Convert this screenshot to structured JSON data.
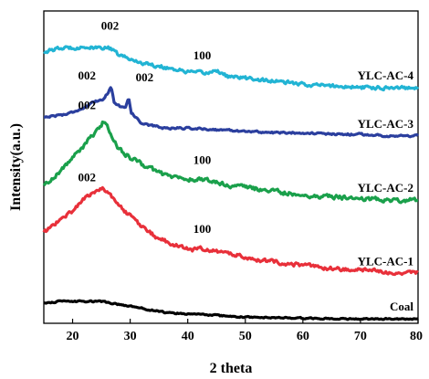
{
  "chart_data": {
    "type": "line",
    "xlabel": "2 theta",
    "ylabel": "Intensity(a.u.)",
    "xlim": [
      15,
      80
    ],
    "ylim": [
      0,
      100
    ],
    "xticks": [
      "20",
      "30",
      "40",
      "50",
      "60",
      "70",
      "80"
    ],
    "grid": false,
    "y_tick_labels_shown": false,
    "series": [
      {
        "name": "YLC-AC-4",
        "color": "#22b4d4",
        "points": [
          [
            15,
            87
          ],
          [
            18,
            88
          ],
          [
            22,
            88.5
          ],
          [
            24,
            88
          ],
          [
            26,
            88.5
          ],
          [
            28,
            86
          ],
          [
            30,
            84.5
          ],
          [
            33,
            83
          ],
          [
            36,
            82
          ],
          [
            40,
            80.5
          ],
          [
            43,
            80
          ],
          [
            45,
            81
          ],
          [
            47,
            79
          ],
          [
            50,
            78.5
          ],
          [
            55,
            77.5
          ],
          [
            60,
            76.5
          ],
          [
            65,
            76
          ],
          [
            70,
            75.5
          ],
          [
            75,
            75.5
          ],
          [
            80,
            75.5
          ]
        ],
        "noise": 0.9
      },
      {
        "name": "YLC-AC-3",
        "color": "#2b3f9e",
        "points": [
          [
            15,
            66
          ],
          [
            19,
            67
          ],
          [
            22,
            69
          ],
          [
            24,
            71
          ],
          [
            25.5,
            72
          ],
          [
            26.2,
            74
          ],
          [
            26.7,
            76
          ],
          [
            27.2,
            71
          ],
          [
            28.5,
            69
          ],
          [
            29.3,
            69.5
          ],
          [
            29.7,
            72.5
          ],
          [
            30.2,
            67.5
          ],
          [
            32,
            64
          ],
          [
            36,
            62.5
          ],
          [
            40,
            62.5
          ],
          [
            45,
            62
          ],
          [
            50,
            61.5
          ],
          [
            55,
            61
          ],
          [
            60,
            61
          ],
          [
            65,
            60.5
          ],
          [
            70,
            60.5
          ],
          [
            75,
            60
          ],
          [
            80,
            60
          ]
        ],
        "noise": 0.5
      },
      {
        "name": "YLC-AC-2",
        "color": "#1aa04b",
        "points": [
          [
            15,
            44
          ],
          [
            18,
            49
          ],
          [
            21,
            55
          ],
          [
            23,
            59
          ],
          [
            24.5,
            62
          ],
          [
            25.5,
            65
          ],
          [
            26.5,
            61
          ],
          [
            28,
            56
          ],
          [
            30,
            53
          ],
          [
            33,
            50
          ],
          [
            36,
            47.5
          ],
          [
            40,
            46
          ],
          [
            43,
            46
          ],
          [
            45,
            45
          ],
          [
            48,
            44
          ],
          [
            52,
            43
          ],
          [
            56,
            42
          ],
          [
            60,
            41
          ],
          [
            65,
            40.5
          ],
          [
            70,
            40
          ],
          [
            75,
            39.5
          ],
          [
            80,
            39.5
          ]
        ],
        "noise": 1.1
      },
      {
        "name": "YLC-AC-1",
        "color": "#e8303a",
        "points": [
          [
            15,
            29
          ],
          [
            17,
            32
          ],
          [
            20,
            36
          ],
          [
            22,
            40
          ],
          [
            24,
            42
          ],
          [
            25,
            43.5
          ],
          [
            26,
            42
          ],
          [
            27,
            40
          ],
          [
            29,
            36
          ],
          [
            32,
            31
          ],
          [
            35,
            27
          ],
          [
            38,
            25
          ],
          [
            41,
            23.5
          ],
          [
            43,
            24
          ],
          [
            45,
            23
          ],
          [
            48,
            22
          ],
          [
            52,
            20.5
          ],
          [
            56,
            19.5
          ],
          [
            60,
            18.5
          ],
          [
            65,
            17.5
          ],
          [
            70,
            17
          ],
          [
            75,
            16.5
          ],
          [
            80,
            16
          ]
        ],
        "noise": 1.0
      },
      {
        "name": "Coal",
        "color": "#000000",
        "points": [
          [
            15,
            6.5
          ],
          [
            18,
            7
          ],
          [
            22,
            7
          ],
          [
            25,
            7
          ],
          [
            28,
            6
          ],
          [
            30,
            5.5
          ],
          [
            33,
            4.5
          ],
          [
            36,
            3.5
          ],
          [
            40,
            3
          ],
          [
            45,
            2.5
          ],
          [
            50,
            2
          ],
          [
            55,
            1.8
          ],
          [
            60,
            1.6
          ],
          [
            65,
            1.5
          ],
          [
            70,
            1.4
          ],
          [
            75,
            1.4
          ],
          [
            80,
            1.4
          ]
        ],
        "noise": 0.35
      }
    ],
    "annotations": [
      {
        "text": "002",
        "x": 26.5,
        "y": 94
      },
      {
        "text": "100",
        "x": 42.5,
        "y": 84.5
      },
      {
        "text": "002",
        "x": 22.5,
        "y": 78
      },
      {
        "text": "002",
        "x": 32.5,
        "y": 77.5
      },
      {
        "text": "002",
        "x": 22.5,
        "y": 68.5
      },
      {
        "text": "100",
        "x": 42.5,
        "y": 51
      },
      {
        "text": "002",
        "x": 22.5,
        "y": 45.5
      },
      {
        "text": "100",
        "x": 42.5,
        "y": 29
      }
    ],
    "series_labels": [
      {
        "text": "YLC-AC-4",
        "series": 0
      },
      {
        "text": "YLC-AC-3",
        "series": 1
      },
      {
        "text": "YLC-AC-2",
        "series": 2
      },
      {
        "text": "YLC-AC-1",
        "series": 3
      },
      {
        "text": "Coal",
        "series": 4
      }
    ]
  }
}
